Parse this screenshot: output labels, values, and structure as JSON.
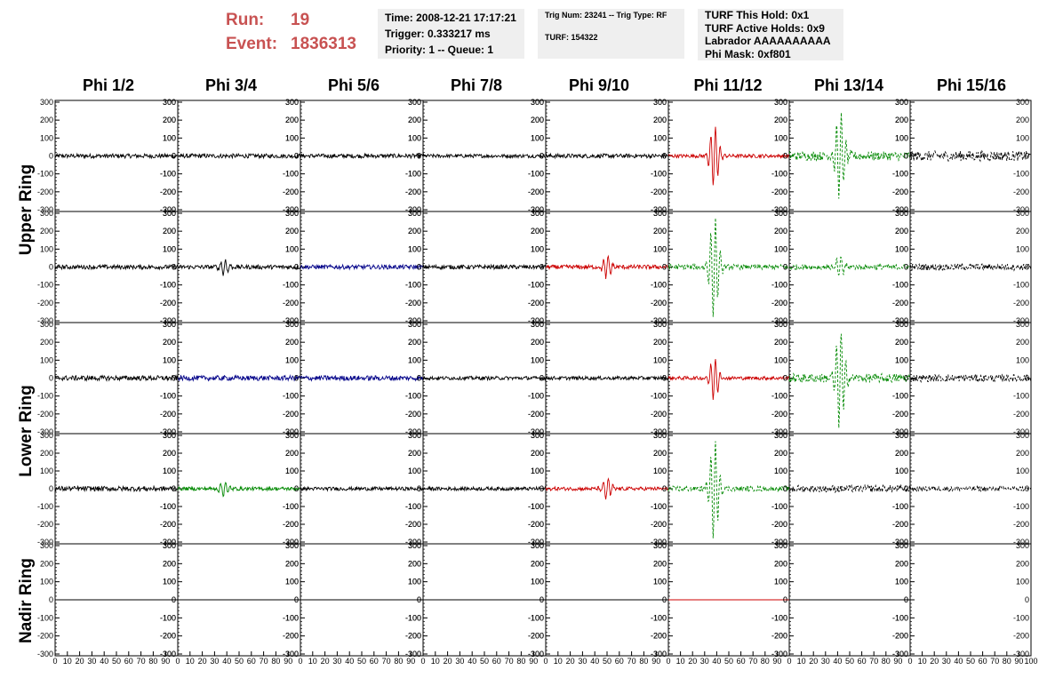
{
  "header": {
    "run_label": "Run:",
    "run_value": "19",
    "event_label": "Event:",
    "event_value": "1836313",
    "box1": [
      "Time: 2008-12-21 17:17:21",
      "Trigger: 0.333217 ms",
      "Priority: 1 -- Queue: 1"
    ],
    "box2": [
      "Trig Num: 23241 -- Trig Type: RF",
      "TURF: 154322"
    ],
    "box3": [
      "TURF This Hold: 0x1",
      "TURF Active Holds: 0x9",
      "Labrador AAAAAAAAAA",
      "Phi Mask: 0xf801"
    ]
  },
  "colors": {
    "black": "#000000",
    "red": "#cc0000",
    "green": "#008800",
    "blue": "#000088",
    "header_red": "#c85252",
    "box_bg": "#efefef"
  },
  "chart_data": {
    "type": "line",
    "columns": [
      "Phi 1/2",
      "Phi 3/4",
      "Phi 5/6",
      "Phi 7/8",
      "Phi 9/10",
      "Phi 11/12",
      "Phi 13/14",
      "Phi 15/16"
    ],
    "rows": [
      "Upper Ring",
      "Upper Ring",
      "Lower Ring",
      "Lower Ring",
      "Nadir Ring"
    ],
    "row_labels": [
      "Upper Ring",
      "Lower Ring",
      "Nadir Ring"
    ],
    "ylim": [
      -300,
      300
    ],
    "xlim": [
      0,
      100
    ],
    "yticks": [
      -300,
      -200,
      -100,
      0,
      100,
      200,
      300
    ],
    "xticks": [
      0,
      10,
      20,
      30,
      40,
      50,
      60,
      70,
      80,
      90,
      100
    ],
    "panels": [
      [
        {
          "color": "black",
          "style": "solid",
          "amp": 12,
          "peak": 0,
          "peakx": 40
        },
        {
          "color": "black",
          "style": "solid",
          "amp": 12,
          "peak": 0,
          "peakx": 40
        },
        {
          "color": "black",
          "style": "solid",
          "amp": 12,
          "peak": 0,
          "peakx": 40
        },
        {
          "color": "black",
          "style": "solid",
          "amp": 10,
          "peak": 0,
          "peakx": 40
        },
        {
          "color": "black",
          "style": "solid",
          "amp": 12,
          "peak": 0,
          "peakx": 40
        },
        {
          "color": "red",
          "style": "solid",
          "amp": 10,
          "peak": 170,
          "peakx": 38
        },
        {
          "color": "green",
          "style": "dashed",
          "amp": 25,
          "peak": 240,
          "peakx": 42
        },
        {
          "color": "black",
          "style": "dashed",
          "amp": 28,
          "peak": 0,
          "peakx": 40
        }
      ],
      [
        {
          "color": "black",
          "style": "solid",
          "amp": 12,
          "peak": 0,
          "peakx": 40
        },
        {
          "color": "black",
          "style": "solid",
          "amp": 12,
          "peak": 45,
          "peakx": 38
        },
        {
          "color": "blue",
          "style": "solid",
          "amp": 12,
          "peak": 0,
          "peakx": 40
        },
        {
          "color": "black",
          "style": "solid",
          "amp": 12,
          "peak": 0,
          "peakx": 40
        },
        {
          "color": "red",
          "style": "solid",
          "amp": 12,
          "peak": 60,
          "peakx": 50
        },
        {
          "color": "green",
          "style": "dashed",
          "amp": 15,
          "peak": 280,
          "peakx": 38
        },
        {
          "color": "green",
          "style": "dashed",
          "amp": 15,
          "peak": 60,
          "peakx": 42
        },
        {
          "color": "black",
          "style": "dashed",
          "amp": 18,
          "peak": 0,
          "peakx": 40
        }
      ],
      [
        {
          "color": "black",
          "style": "solid",
          "amp": 14,
          "peak": 0,
          "peakx": 40
        },
        {
          "color": "blue",
          "style": "solid",
          "amp": 14,
          "peak": 0,
          "peakx": 40
        },
        {
          "color": "blue",
          "style": "solid",
          "amp": 14,
          "peak": 0,
          "peakx": 40
        },
        {
          "color": "black",
          "style": "solid",
          "amp": 10,
          "peak": 0,
          "peakx": 40
        },
        {
          "color": "black",
          "style": "solid",
          "amp": 10,
          "peak": 0,
          "peakx": 40
        },
        {
          "color": "red",
          "style": "solid",
          "amp": 10,
          "peak": 120,
          "peakx": 38
        },
        {
          "color": "green",
          "style": "dashed",
          "amp": 25,
          "peak": 270,
          "peakx": 42
        },
        {
          "color": "black",
          "style": "dashed",
          "amp": 20,
          "peak": 0,
          "peakx": 40
        }
      ],
      [
        {
          "color": "black",
          "style": "solid",
          "amp": 14,
          "peak": 0,
          "peakx": 40
        },
        {
          "color": "green",
          "style": "solid",
          "amp": 10,
          "peak": 40,
          "peakx": 38
        },
        {
          "color": "black",
          "style": "solid",
          "amp": 10,
          "peak": 0,
          "peakx": 40
        },
        {
          "color": "black",
          "style": "solid",
          "amp": 10,
          "peak": 0,
          "peakx": 40
        },
        {
          "color": "red",
          "style": "solid",
          "amp": 10,
          "peak": 60,
          "peakx": 50
        },
        {
          "color": "green",
          "style": "dashed",
          "amp": 15,
          "peak": 280,
          "peakx": 38
        },
        {
          "color": "black",
          "style": "dashed",
          "amp": 20,
          "peak": 0,
          "peakx": 40
        },
        {
          "color": "black",
          "style": "dashed",
          "amp": 14,
          "peak": 0,
          "peakx": 40
        }
      ],
      [
        {
          "color": "black",
          "style": "flat",
          "amp": 0,
          "peak": 0,
          "peakx": 40
        },
        {
          "color": "black",
          "style": "flat",
          "amp": 0,
          "peak": 0,
          "peakx": 40
        },
        {
          "color": "black",
          "style": "flat",
          "amp": 0,
          "peak": 0,
          "peakx": 40
        },
        {
          "color": "black",
          "style": "flat",
          "amp": 0,
          "peak": 0,
          "peakx": 40
        },
        {
          "color": "black",
          "style": "flat",
          "amp": 0,
          "peak": 0,
          "peakx": 40
        },
        {
          "color": "red",
          "style": "flat",
          "amp": 0,
          "peak": 0,
          "peakx": 40
        },
        {
          "color": "black",
          "style": "flat",
          "amp": 0,
          "peak": 0,
          "peakx": 40
        },
        {
          "color": "black",
          "style": "none",
          "amp": 0,
          "peak": 0,
          "peakx": 40
        }
      ]
    ]
  }
}
